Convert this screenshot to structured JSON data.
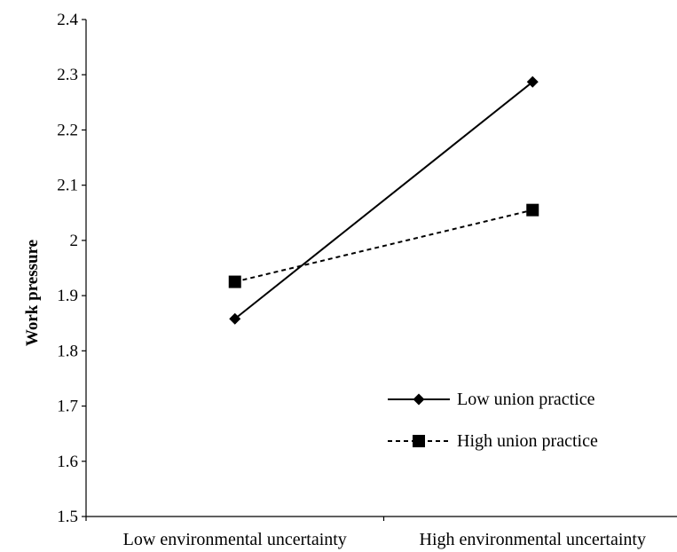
{
  "chart_data": {
    "type": "line",
    "categories": [
      "Low environmental uncertainty",
      "High environmental uncertainty"
    ],
    "series": [
      {
        "name": "Low union practice",
        "values": [
          1.858,
          2.287
        ],
        "marker": "diamond",
        "line": "solid",
        "color": "#000000"
      },
      {
        "name": "High union practice",
        "values": [
          1.925,
          2.055
        ],
        "marker": "square",
        "line": "dashed",
        "color": "#000000"
      }
    ],
    "title": "",
    "xlabel": "",
    "ylabel": "Work pressure",
    "ylim": [
      1.5,
      2.4
    ],
    "yticks": [
      "1.5",
      "1.6",
      "1.7",
      "1.8",
      "1.9",
      "2",
      "2.1",
      "2.2",
      "2.3",
      "2.4"
    ],
    "grid": false,
    "legend_position": "bottom-right"
  }
}
